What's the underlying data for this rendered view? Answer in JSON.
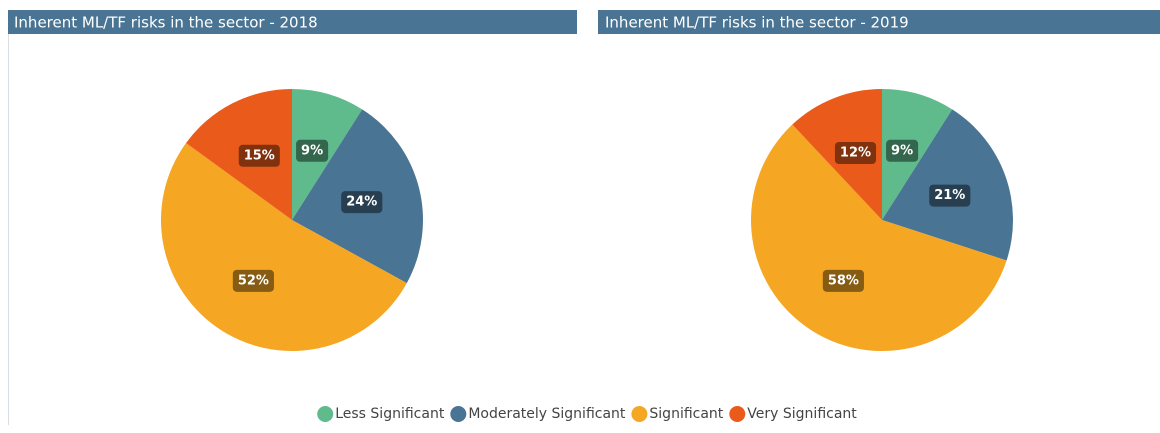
{
  "chart_data": [
    {
      "type": "pie",
      "title": "Inherent ML/TF risks in the sector - 2018",
      "values": [
        9,
        24,
        52,
        15
      ],
      "value_labels": [
        "9%",
        "24%",
        "52%",
        "15%"
      ]
    },
    {
      "type": "pie",
      "title": "Inherent ML/TF risks in the sector - 2019",
      "values": [
        9,
        21,
        58,
        12
      ],
      "value_labels": [
        "9%",
        "21%",
        "58%",
        "12%"
      ]
    }
  ],
  "legend": {
    "categories": [
      "Less Significant",
      "Moderately Significant",
      "Significant",
      "Very Significant"
    ],
    "colors": [
      "#5fba8c",
      "#4a7494",
      "#f5a623",
      "#ea5b1b"
    ]
  }
}
